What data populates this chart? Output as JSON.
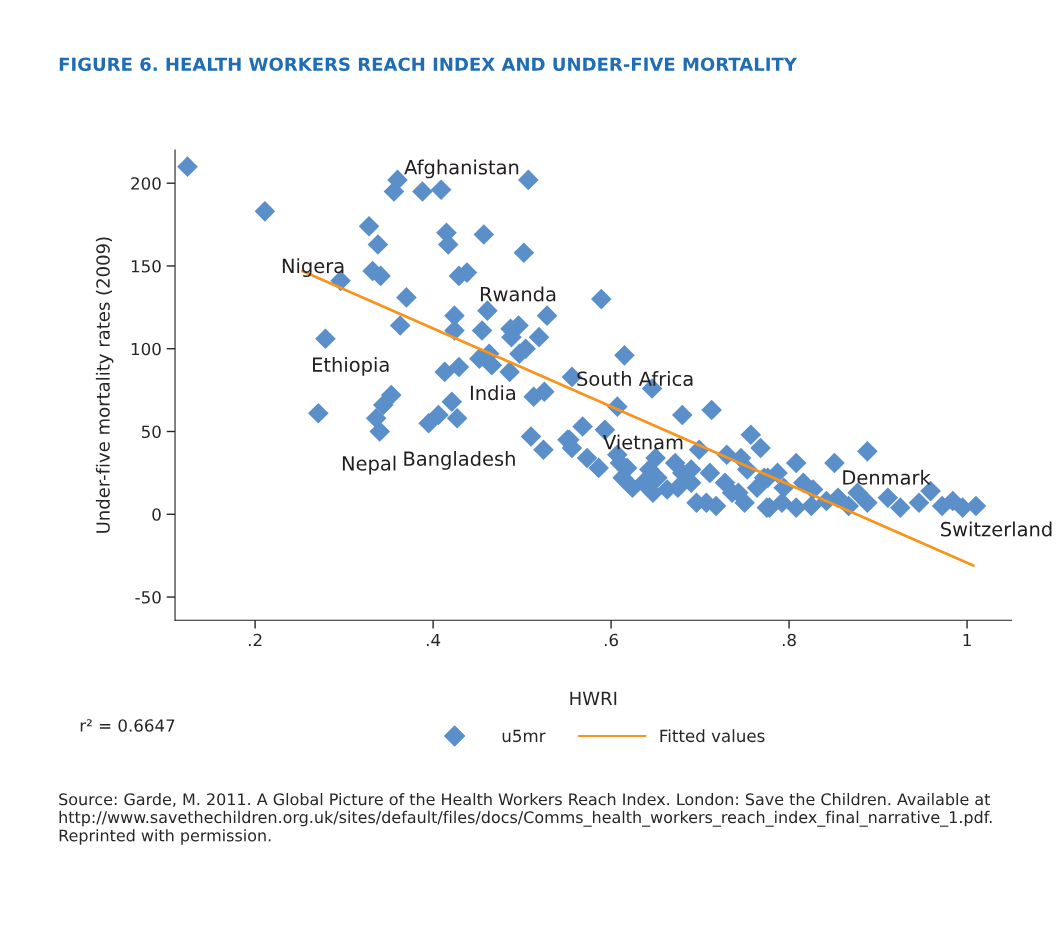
{
  "chart_data": {
    "type": "scatter",
    "title": "FIGURE 6. HEALTH WORKERS REACH INDEX AND UNDER-FIVE MORTALITY",
    "xlabel": "HWRI",
    "ylabel": "Under-five mortality rates (2009)",
    "xlim": [
      0.11,
      1.05
    ],
    "ylim": [
      -64,
      220
    ],
    "xticks": [
      {
        "value": 0.2,
        "label": ".2"
      },
      {
        "value": 0.4,
        "label": ".4"
      },
      {
        "value": 0.6,
        "label": ".6"
      },
      {
        "value": 0.8,
        "label": ".8"
      },
      1
    ],
    "yticks": [
      -50,
      0,
      50,
      100,
      150,
      200
    ],
    "grid": false,
    "legend": "bottom",
    "series": [
      {
        "name": "u5mr",
        "marker": "diamond",
        "color": "#5b8fc9",
        "x": [
          0.124,
          0.211,
          0.328,
          0.338,
          0.332,
          0.341,
          0.296,
          0.37,
          0.363,
          0.279,
          0.36,
          0.356,
          0.388,
          0.409,
          0.507,
          0.415,
          0.417,
          0.457,
          0.502,
          0.429,
          0.438,
          0.589,
          0.424,
          0.461,
          0.528,
          0.424,
          0.455,
          0.487,
          0.496,
          0.519,
          0.488,
          0.452,
          0.463,
          0.466,
          0.486,
          0.497,
          0.504,
          0.413,
          0.429,
          0.513,
          0.525,
          0.271,
          0.353,
          0.344,
          0.336,
          0.34,
          0.421,
          0.406,
          0.395,
          0.427,
          0.51,
          0.524,
          0.551,
          0.615,
          0.556,
          0.646,
          0.607,
          0.68,
          0.713,
          0.568,
          0.593,
          0.553,
          0.556,
          0.573,
          0.586,
          0.607,
          0.61,
          0.618,
          0.613,
          0.624,
          0.636,
          0.647,
          0.65,
          0.643,
          0.652,
          0.663,
          0.672,
          0.68,
          0.675,
          0.69,
          0.699,
          0.69,
          0.696,
          0.707,
          0.718,
          0.711,
          0.73,
          0.728,
          0.736,
          0.757,
          0.768,
          0.746,
          0.753,
          0.743,
          0.75,
          0.764,
          0.775,
          0.772,
          0.808,
          0.888,
          0.851,
          0.787,
          0.776,
          0.794,
          0.816,
          0.827,
          0.778,
          0.792,
          0.808,
          0.825,
          0.842,
          0.855,
          0.867,
          0.877,
          0.888,
          0.911,
          0.925,
          0.946,
          0.959,
          0.972,
          0.984,
          0.995,
          1.01
        ],
        "values": [
          210,
          183,
          174,
          163,
          147,
          144,
          141,
          131,
          114,
          106,
          202,
          195,
          195,
          196,
          202,
          170,
          163,
          169,
          158,
          144,
          146,
          130,
          120,
          123,
          120,
          111,
          111,
          112,
          114,
          107,
          107,
          94,
          97,
          90,
          86,
          97,
          100,
          86,
          89,
          71,
          74,
          61,
          72,
          66,
          58,
          50,
          68,
          60,
          55,
          58,
          47,
          39,
          45,
          96,
          83,
          76,
          65,
          60,
          63,
          53,
          51,
          45,
          40,
          34,
          28,
          36,
          31,
          28,
          22,
          16,
          19,
          13,
          34,
          27,
          22,
          15,
          31,
          25,
          16,
          27,
          39,
          19,
          7,
          7,
          5,
          25,
          36,
          19,
          13,
          48,
          40,
          34,
          27,
          13,
          7,
          16,
          4,
          22,
          31,
          38,
          31,
          25,
          22,
          16,
          19,
          15,
          4,
          7,
          4,
          5,
          8,
          10,
          5,
          13,
          7,
          10,
          4,
          7,
          14,
          5,
          8,
          4,
          5
        ]
      },
      {
        "name": "Fitted values",
        "type": "line",
        "color": "#f7941d",
        "x": [
          0.253,
          1.007
        ],
        "values": [
          147,
          -31
        ]
      }
    ],
    "annotations": [
      "Afghanistan",
      "Nigera",
      "Rwanda",
      "Ethiopia",
      "India",
      "South Africa",
      "Nepal",
      "Bangladesh",
      "Vietnam",
      "Denmark",
      "Switzerland",
      "r² = 0.6647",
      "Source: Garde, M. 2011. A Global Picture of the Health Workers Reach Index. London: Save the Children. Available at http://www.savethechildren.org.uk/sites/default/files/docs/Comms_health_workers_reach_index_final_narrative_1.pdf. Reprinted with permission."
    ]
  }
}
